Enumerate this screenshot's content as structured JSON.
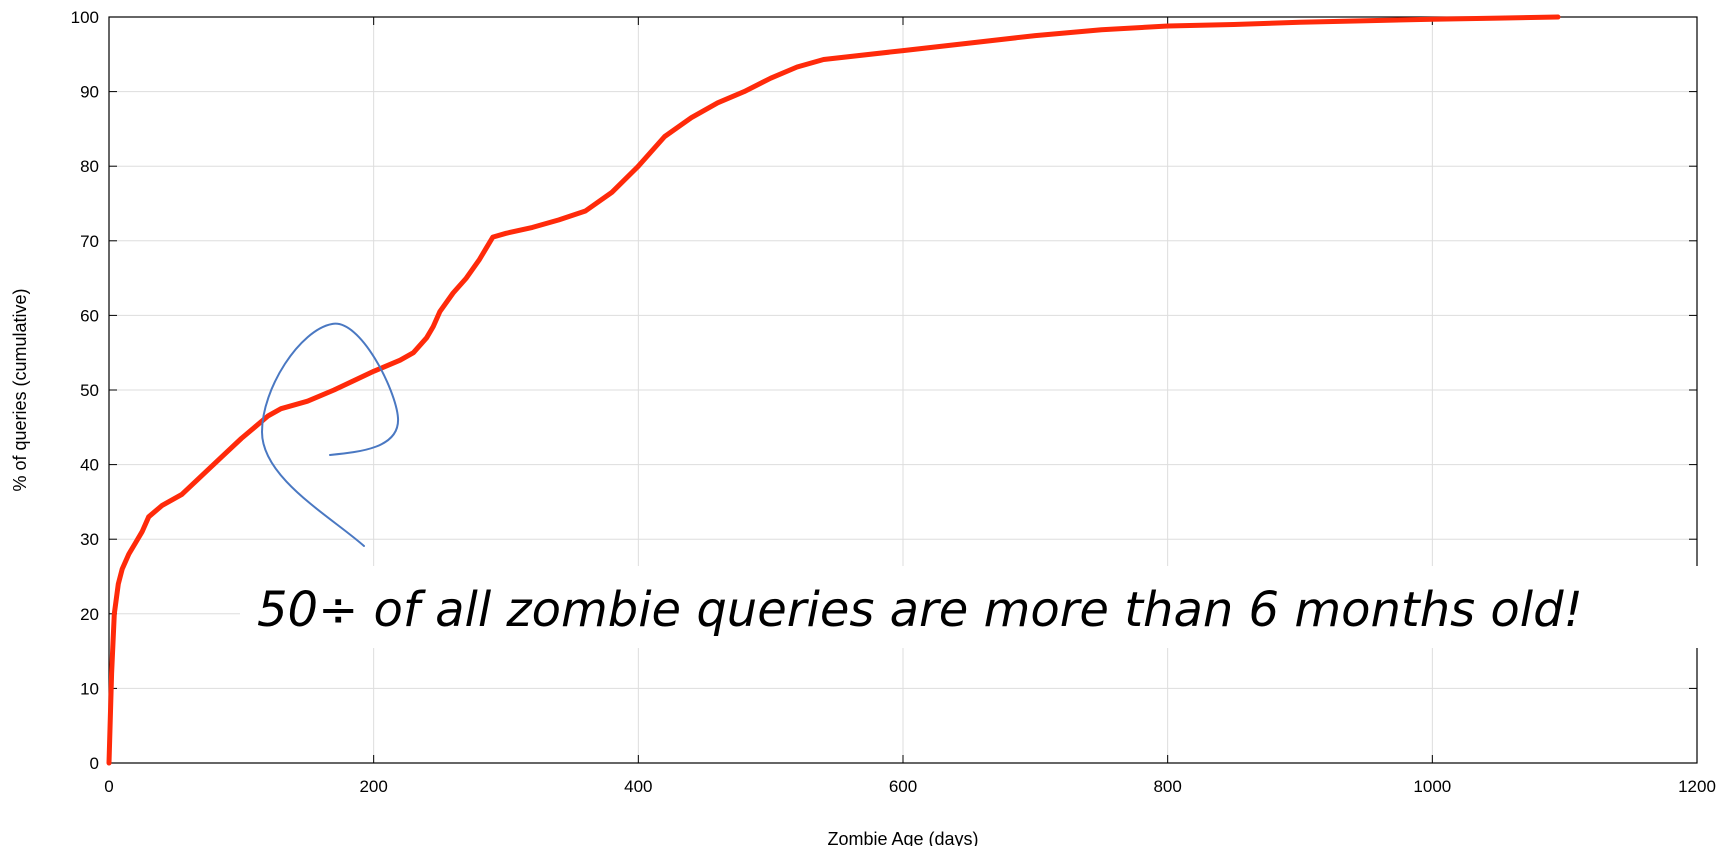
{
  "chart_data": {
    "type": "line",
    "title": "",
    "xlabel": "Zombie Age (days)",
    "ylabel": "% of queries (cumulative)",
    "xlim": [
      0,
      1200
    ],
    "ylim": [
      0,
      100
    ],
    "x_ticks": [
      0,
      200,
      400,
      600,
      800,
      1000,
      1200
    ],
    "y_ticks": [
      0,
      10,
      20,
      30,
      40,
      50,
      60,
      70,
      80,
      90,
      100
    ],
    "grid": true,
    "legend": "none",
    "series": [
      {
        "color": "#ff2a0a",
        "x": [
          0,
          2,
          4,
          7,
          10,
          15,
          20,
          25,
          30,
          40,
          55,
          70,
          85,
          100,
          110,
          120,
          130,
          150,
          170,
          200,
          220,
          230,
          240,
          245,
          250,
          260,
          270,
          280,
          285,
          290,
          300,
          320,
          340,
          360,
          380,
          400,
          420,
          440,
          460,
          480,
          500,
          520,
          540,
          600,
          650,
          700,
          750,
          800,
          850,
          900,
          950,
          1000,
          1050,
          1095
        ],
        "values": [
          0,
          12,
          20,
          24,
          26,
          28,
          29.5,
          31,
          33,
          34.5,
          36,
          38.5,
          41,
          43.5,
          45,
          46.5,
          47.5,
          48.5,
          50,
          52.5,
          54,
          55,
          57,
          58.5,
          60.5,
          63,
          65,
          67.5,
          69,
          70.5,
          71,
          71.8,
          72.8,
          74,
          76.5,
          80,
          84,
          86.5,
          88.5,
          90,
          91.8,
          93.3,
          94.3,
          95.5,
          96.5,
          97.5,
          98.3,
          98.8,
          99,
          99.3,
          99.5,
          99.7,
          99.85,
          100
        ]
      }
    ],
    "annotation": {
      "text": "50÷ of all zombie queries are more than 6 months old!",
      "stroke_color": "#4a78c2"
    }
  }
}
